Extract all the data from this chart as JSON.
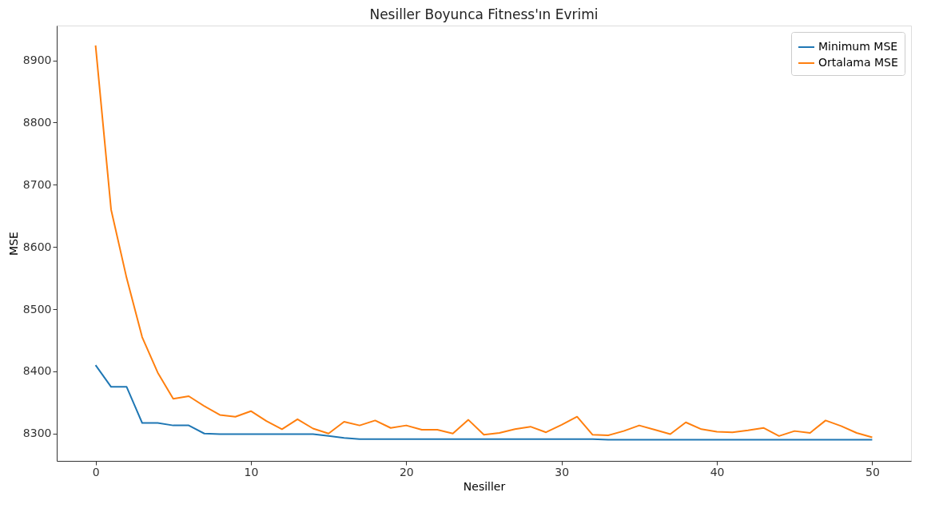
{
  "chart_data": {
    "type": "line",
    "title": "Nesiller Boyunca Fitness'ın Evrimi",
    "xlabel": "Nesiller",
    "ylabel": "MSE",
    "x": [
      0,
      1,
      2,
      3,
      4,
      5,
      6,
      7,
      8,
      9,
      10,
      11,
      12,
      13,
      14,
      15,
      16,
      17,
      18,
      19,
      20,
      21,
      22,
      23,
      24,
      25,
      26,
      27,
      28,
      29,
      30,
      31,
      32,
      33,
      34,
      35,
      36,
      37,
      38,
      39,
      40,
      41,
      42,
      43,
      44,
      45,
      46,
      47,
      48,
      49,
      50
    ],
    "series": [
      {
        "name": "Minimum MSE",
        "color": "#1f77b4",
        "values": [
          8410,
          8375,
          8375,
          8317,
          8317,
          8313,
          8313,
          8300,
          8299,
          8299,
          8299,
          8299,
          8299,
          8299,
          8299,
          8296,
          8293,
          8291,
          8291,
          8291,
          8291,
          8291,
          8291,
          8291,
          8291,
          8291,
          8291,
          8291,
          8291,
          8291,
          8291,
          8291,
          8291,
          8290,
          8290,
          8290,
          8290,
          8290,
          8290,
          8290,
          8290,
          8290,
          8290,
          8290,
          8290,
          8290,
          8290,
          8290,
          8290,
          8290,
          8290
        ]
      },
      {
        "name": "Ortalama MSE",
        "color": "#ff7f0e",
        "values": [
          8924,
          8660,
          8550,
          8455,
          8398,
          8356,
          8360,
          8344,
          8330,
          8327,
          8336,
          8320,
          8307,
          8323,
          8308,
          8300,
          8319,
          8313,
          8321,
          8309,
          8313,
          8306,
          8306,
          8300,
          8322,
          8298,
          8301,
          8307,
          8311,
          8302,
          8314,
          8327,
          8298,
          8297,
          8304,
          8313,
          8306,
          8299,
          8318,
          8307,
          8303,
          8302,
          8305,
          8309,
          8296,
          8304,
          8301,
          8321,
          8312,
          8301,
          8294
        ]
      }
    ],
    "xlim": [
      -2.5,
      52.5
    ],
    "xticks": [
      0,
      10,
      20,
      30,
      40,
      50
    ],
    "ylim": [
      8256,
      8956
    ],
    "yticks": [
      8300,
      8400,
      8500,
      8600,
      8700,
      8800,
      8900
    ],
    "grid": false,
    "legend": "top right",
    "marker": "none",
    "line_style": "solid"
  }
}
